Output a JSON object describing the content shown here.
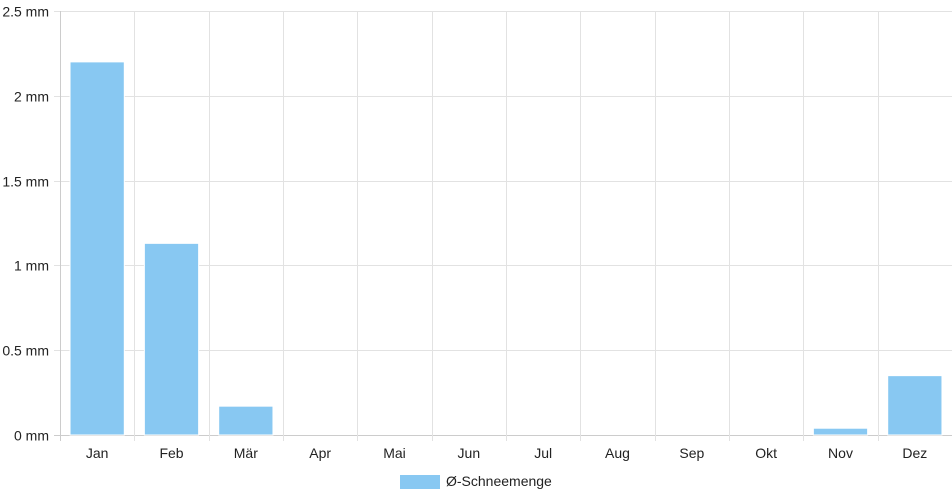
{
  "chart_data": {
    "type": "bar",
    "categories": [
      "Jan",
      "Feb",
      "Mär",
      "Apr",
      "Mai",
      "Jun",
      "Jul",
      "Aug",
      "Sep",
      "Okt",
      "Nov",
      "Dez"
    ],
    "series": [
      {
        "name": "Ø-Schneemenge",
        "values": [
          2.2,
          1.13,
          0.17,
          0,
          0,
          0,
          0,
          0,
          0,
          0,
          0.04,
          0.35
        ]
      }
    ],
    "title": "",
    "xlabel": "",
    "ylabel": "",
    "ylim": [
      0,
      2.5
    ],
    "y_ticks": [
      "0 mm",
      "0.5 mm",
      "1 mm",
      "1.5 mm",
      "2 mm",
      "2.5 mm"
    ],
    "grid": true,
    "legend_position": "bottom",
    "colors": {
      "bar": "#88c8f2",
      "bar_border": "#ffffff",
      "grid": "#e2e2e2",
      "axis": "#cccccc"
    }
  }
}
